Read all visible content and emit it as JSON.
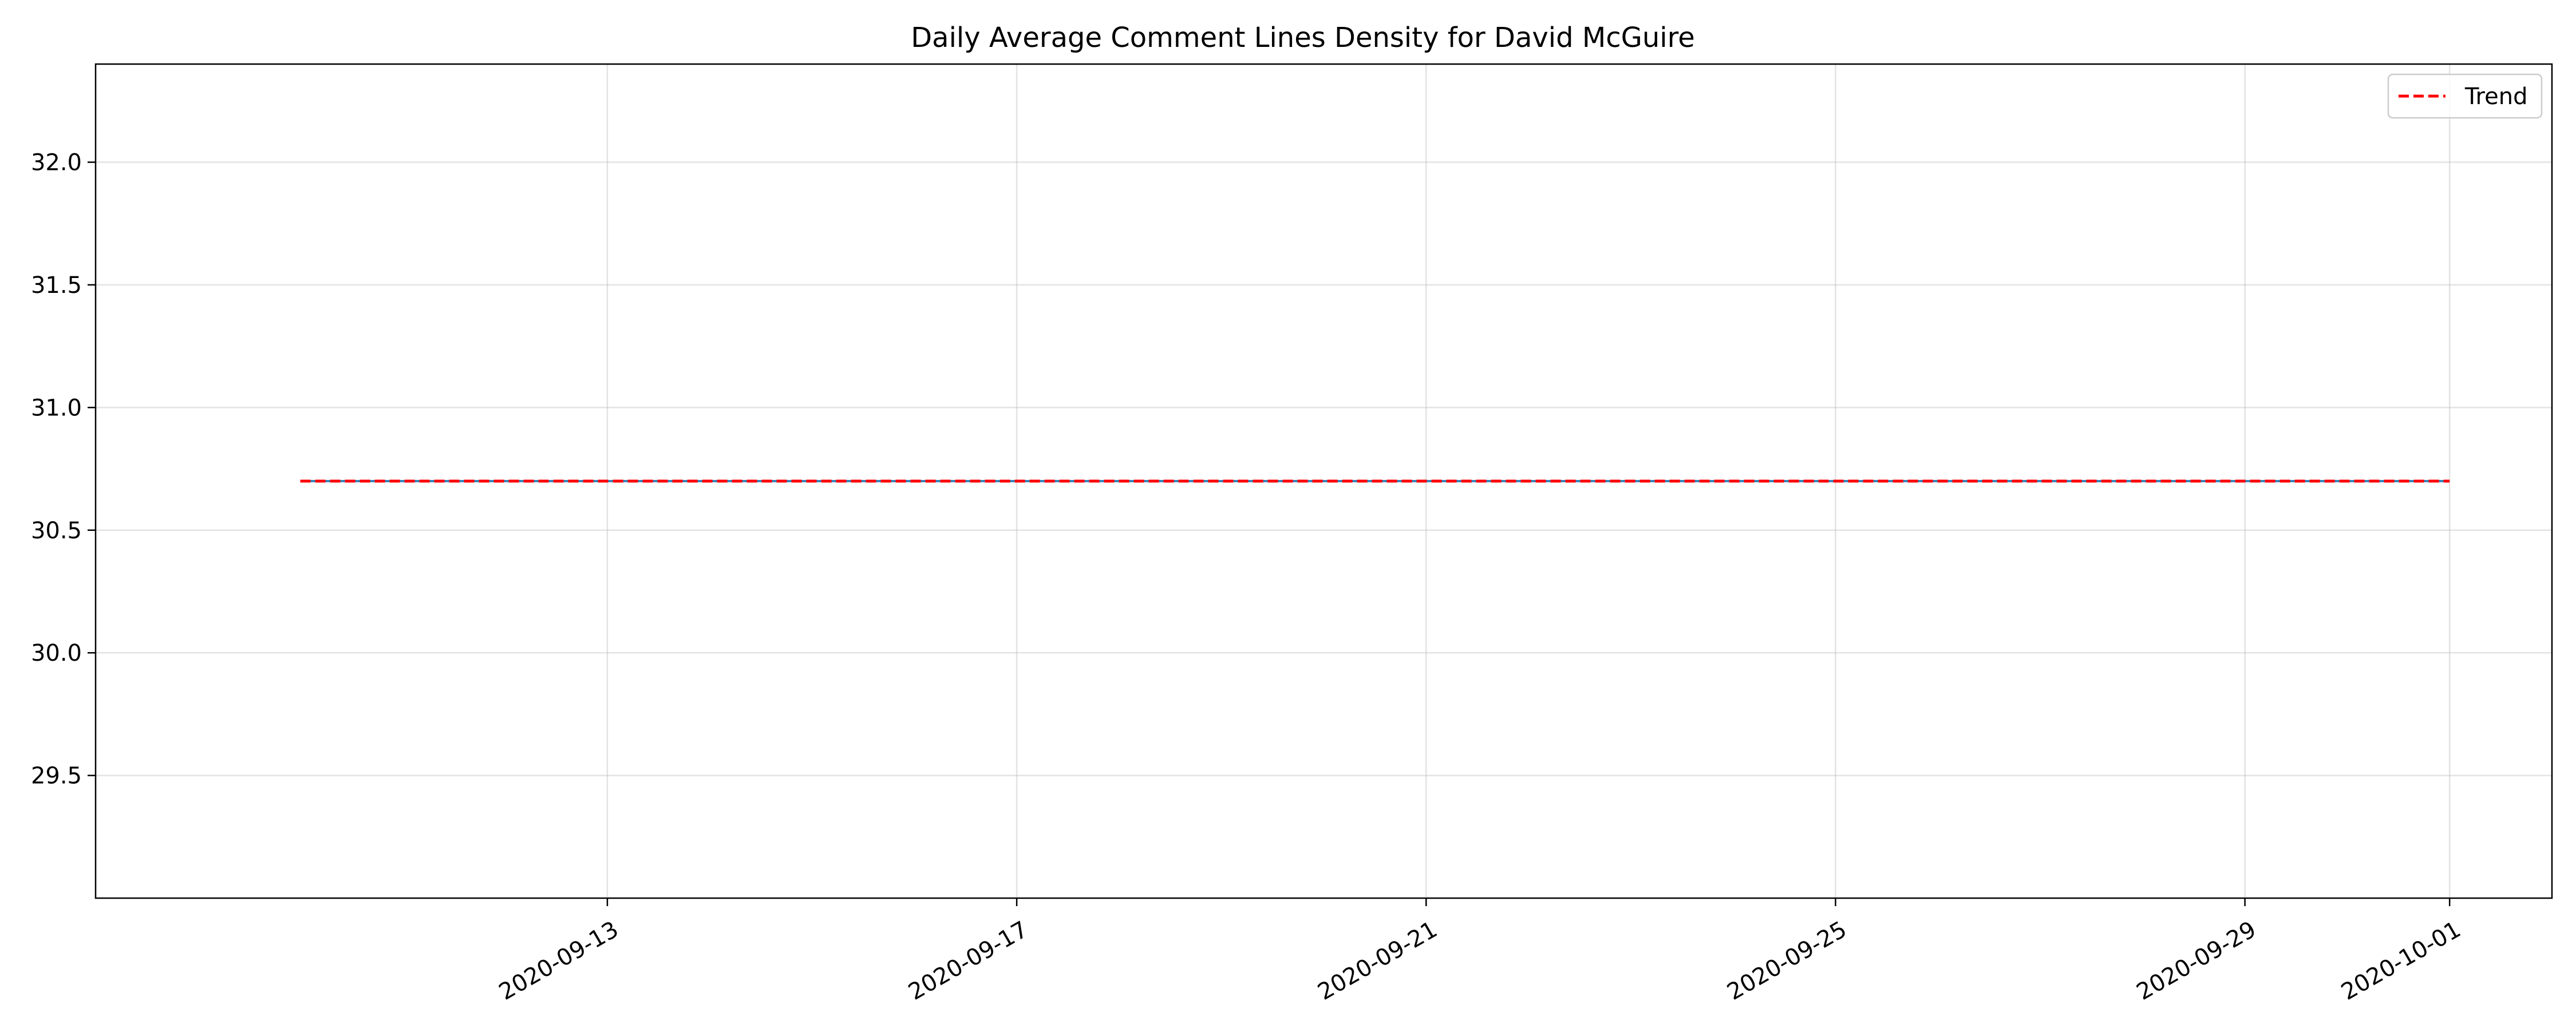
{
  "chart_data": {
    "type": "line",
    "title": "Daily Average Comment Lines Density for David McGuire",
    "xlabel": "",
    "ylabel": "",
    "x_type": "date",
    "xlim": [
      "2020-09-08",
      "2020-10-02"
    ],
    "ylim": [
      29.0,
      32.4
    ],
    "x_ticks": [
      "2020-09-13",
      "2020-09-17",
      "2020-09-21",
      "2020-09-25",
      "2020-09-29",
      "2020-10-01"
    ],
    "y_ticks": [
      29.5,
      30.0,
      30.5,
      31.0,
      31.5,
      32.0
    ],
    "grid": true,
    "legend": {
      "placement": "top-right"
    },
    "series": [
      {
        "type": "line",
        "color": "#1f77b4",
        "style": "solid",
        "x": [
          "2020-09-10",
          "2020-09-14",
          "2020-09-18",
          "2020-09-22",
          "2020-09-26",
          "2020-09-30",
          "2020-10-01"
        ],
        "y": [
          30.7,
          30.7,
          30.7,
          30.7,
          30.7,
          30.7,
          30.7
        ]
      },
      {
        "name": "Trend",
        "type": "line",
        "color": "#ff0000",
        "style": "dashed",
        "x": [
          "2020-09-10",
          "2020-10-01"
        ],
        "y": [
          30.7,
          30.7
        ]
      }
    ]
  }
}
